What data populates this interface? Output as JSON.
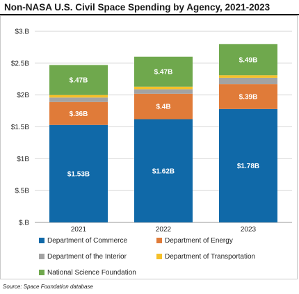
{
  "title": "Non-NASA U.S. Civil Space Spending by Agency, 2021-2023",
  "source": "Source: Space Foundation database",
  "chart_data": {
    "type": "bar",
    "stacked": true,
    "title": "Non-NASA U.S. Civil Space Spending by Agency, 2021-2023",
    "categories": [
      "2021",
      "2022",
      "2023"
    ],
    "ylim": [
      0,
      3.0
    ],
    "yticks": [
      0,
      0.5,
      1.0,
      1.5,
      2.0,
      2.5,
      3.0
    ],
    "ytick_labels": [
      "$.B",
      "$.5B",
      "$1B",
      "$1.5B",
      "$2B",
      "$2.5B",
      "$3.B"
    ],
    "grid": true,
    "legend_position": "bottom",
    "series": [
      {
        "name": "Department of Commerce",
        "color": "#1069a8",
        "values": [
          1.53,
          1.62,
          1.78
        ],
        "labels": [
          "$1.53B",
          "$1.62B",
          "$1.78B"
        ]
      },
      {
        "name": "Department of Energy",
        "color": "#e07b39",
        "values": [
          0.36,
          0.4,
          0.39
        ],
        "labels": [
          "$.36B",
          "$.4B",
          "$.39B"
        ]
      },
      {
        "name": "Department of the Interior",
        "color": "#a3a3a3",
        "values": [
          0.07,
          0.07,
          0.1
        ],
        "labels": [
          "",
          "",
          ""
        ]
      },
      {
        "name": "Department of Transportation",
        "color": "#f5c02a",
        "values": [
          0.04,
          0.04,
          0.04
        ],
        "labels": [
          "",
          "",
          ""
        ]
      },
      {
        "name": "National Science Foundation",
        "color": "#6fa84d",
        "values": [
          0.47,
          0.47,
          0.49
        ],
        "labels": [
          "$.47B",
          "$.47B",
          "$.49B"
        ]
      }
    ]
  }
}
